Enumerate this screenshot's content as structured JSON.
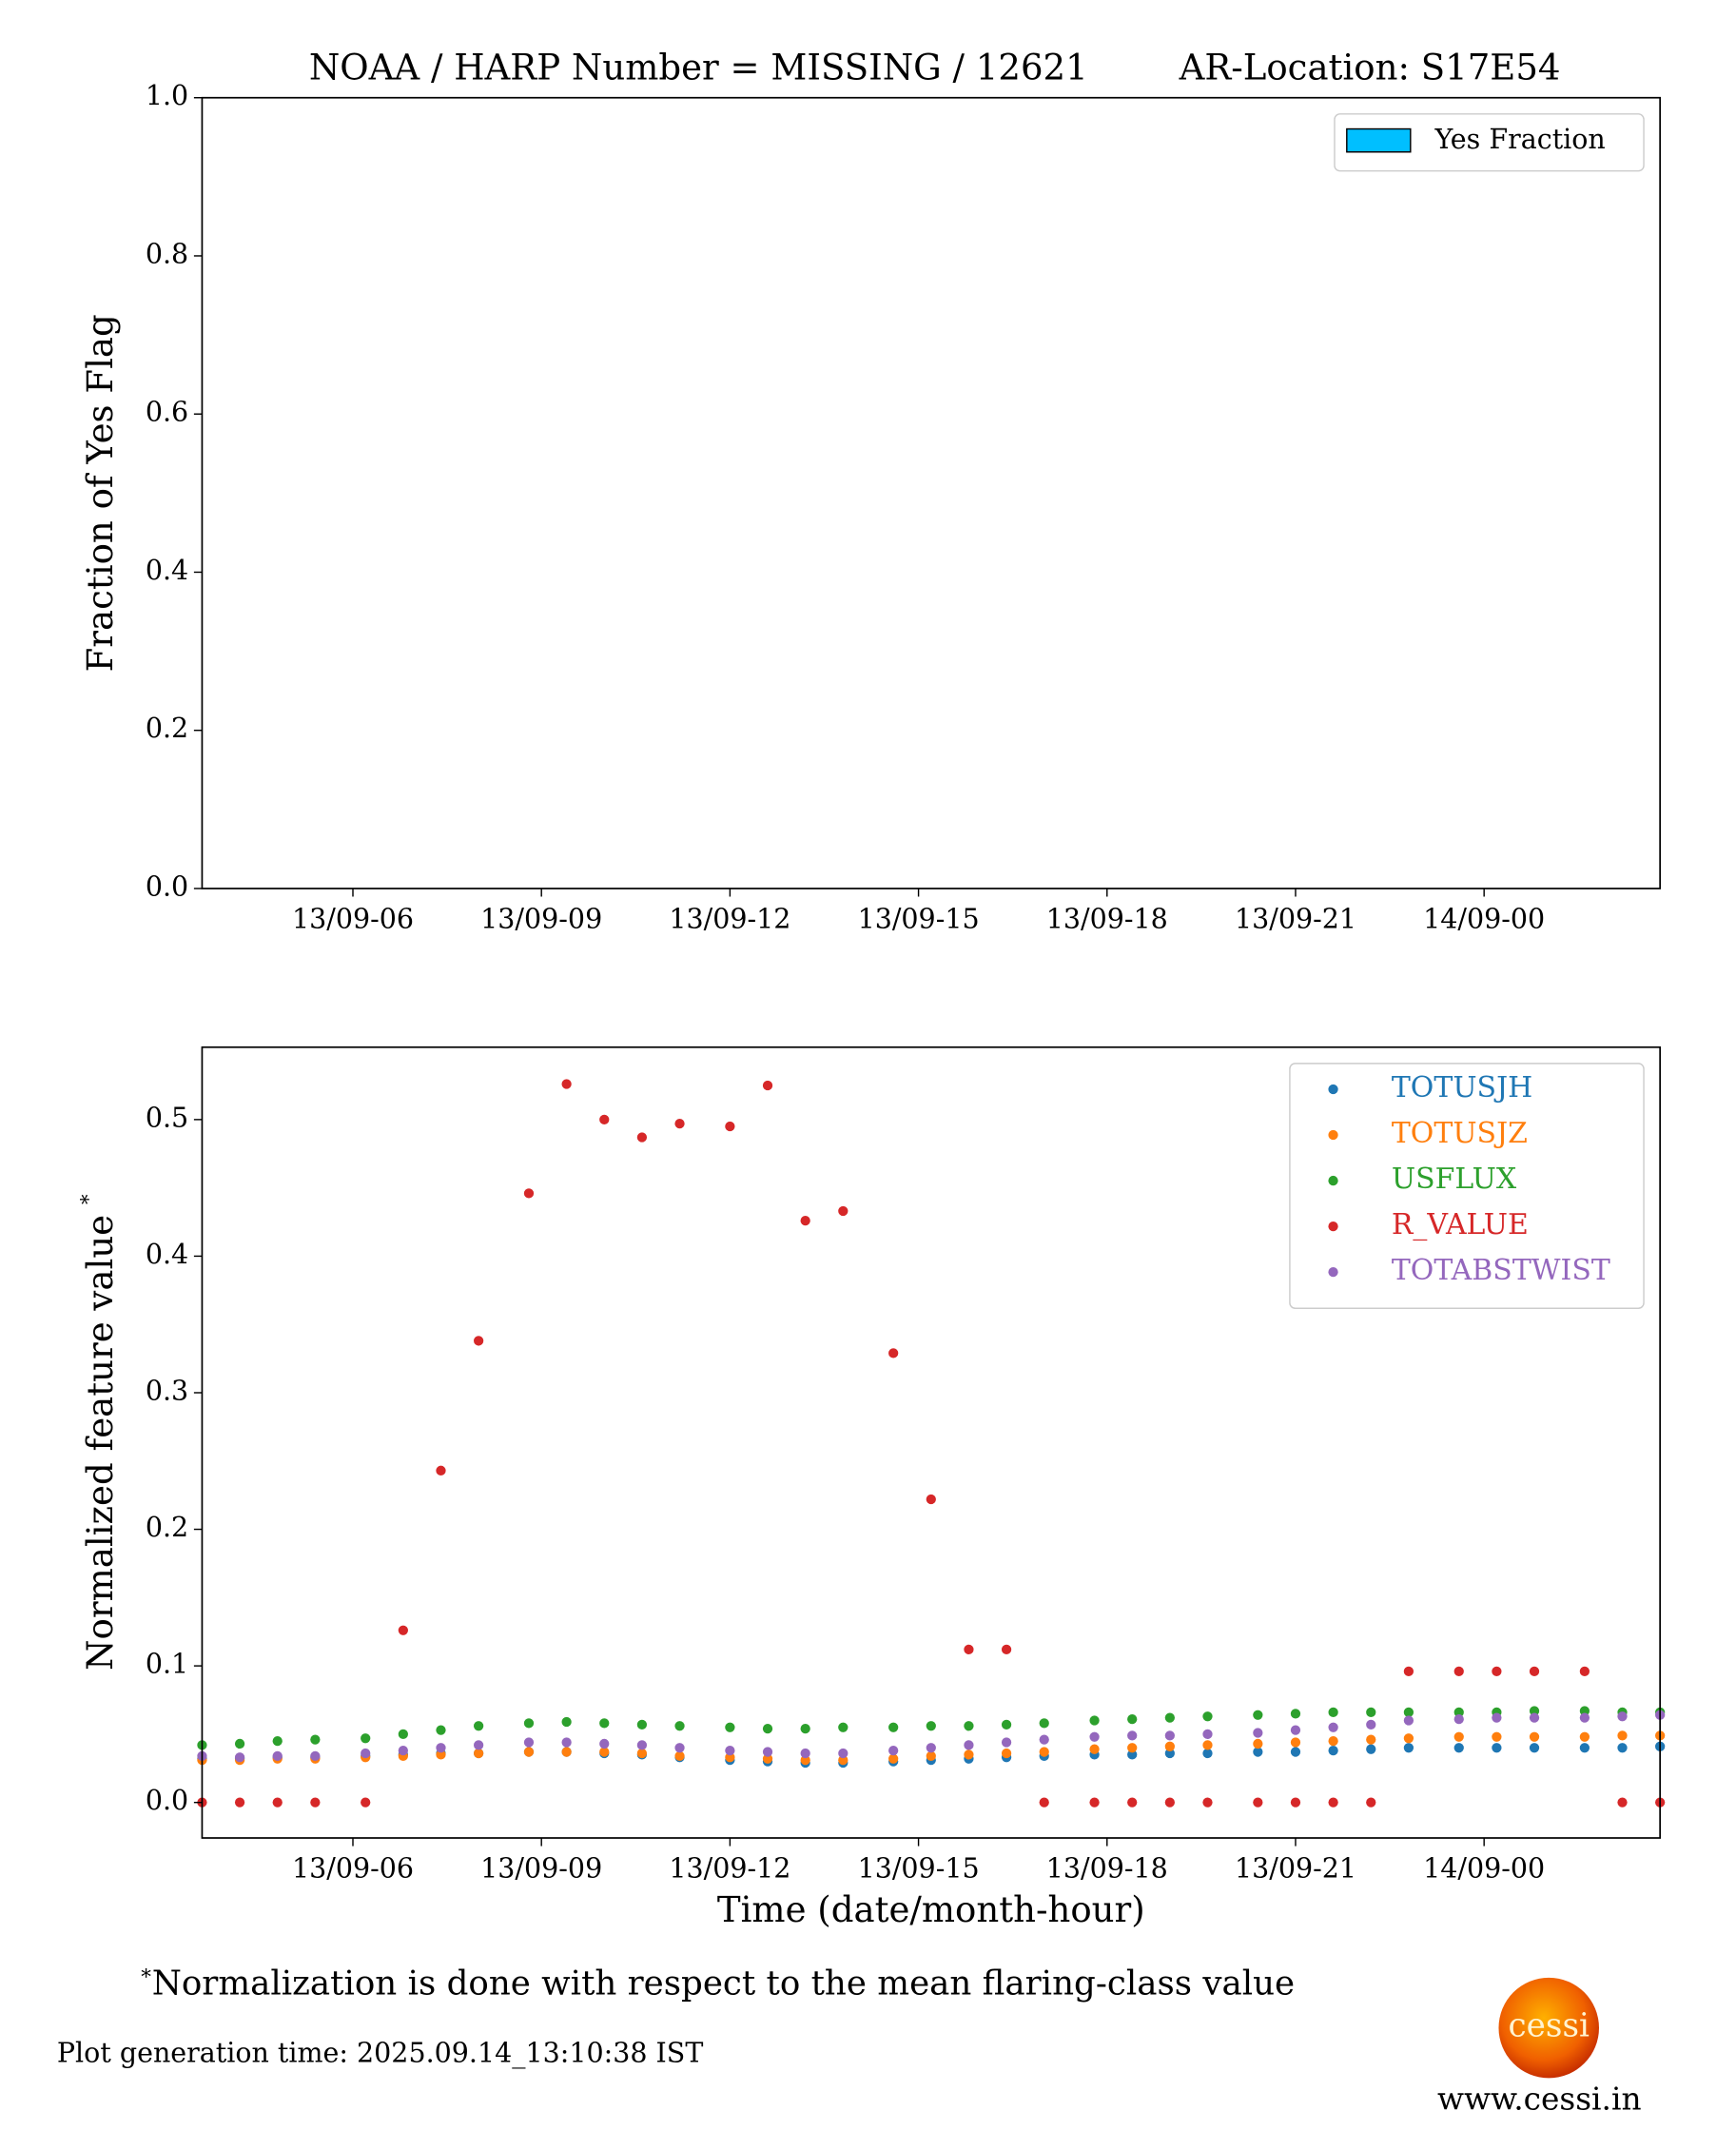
{
  "chart_data": [
    {
      "type": "bar",
      "title": "NOAA / HARP Number = MISSING / 12621",
      "title_right": "AR-Location: S17E54",
      "ylabel": "Fraction of Yes Flag",
      "series": [
        {
          "name": "Yes Fraction",
          "color": "#00bfff",
          "values": []
        }
      ],
      "legend": "upper right",
      "grid": false,
      "xlim": [
        3.6,
        26.8
      ],
      "xticks": [
        {
          "value": 6,
          "label": "13/09-06"
        },
        {
          "value": 9,
          "label": "13/09-09"
        },
        {
          "value": 12,
          "label": "13/09-12"
        },
        {
          "value": 15,
          "label": "13/09-15"
        },
        {
          "value": 18,
          "label": "13/09-18"
        },
        {
          "value": 21,
          "label": "13/09-21"
        },
        {
          "value": 24,
          "label": "14/09-00"
        }
      ],
      "ylim": [
        0,
        1
      ],
      "yticks": [
        {
          "value": 0,
          "label": "0.0"
        },
        {
          "value": 0.2,
          "label": "0.2"
        },
        {
          "value": 0.4,
          "label": "0.4"
        },
        {
          "value": 0.6,
          "label": "0.6"
        },
        {
          "value": 0.8,
          "label": "0.8"
        },
        {
          "value": 1,
          "label": "1.0"
        }
      ]
    },
    {
      "type": "scatter",
      "xlabel": "Time (date/month-hour)",
      "ylabel": "Normalized feature value",
      "ylabel_superscript": "*",
      "legend": "upper right",
      "grid": false,
      "x": [
        3.6,
        4.2,
        4.8,
        5.4,
        6.2,
        6.8,
        7.4,
        8.0,
        8.8,
        9.4,
        10.0,
        10.6,
        11.2,
        12.0,
        12.6,
        13.2,
        13.8,
        14.6,
        15.2,
        15.8,
        16.4,
        17.0,
        17.8,
        18.4,
        19.0,
        19.6,
        20.4,
        21.0,
        21.6,
        22.2,
        22.8,
        23.6,
        24.2,
        24.8,
        25.6,
        26.2,
        26.8
      ],
      "series": [
        {
          "name": "TOTUSJH",
          "color": "#1f77b4",
          "values": [
            0.032,
            0.032,
            0.033,
            0.033,
            0.034,
            0.035,
            0.036,
            0.036,
            0.037,
            0.037,
            0.036,
            0.035,
            0.033,
            0.031,
            0.03,
            0.029,
            0.029,
            0.03,
            0.031,
            0.032,
            0.033,
            0.034,
            0.035,
            0.035,
            0.036,
            0.036,
            0.037,
            0.037,
            0.038,
            0.039,
            0.04,
            0.04,
            0.04,
            0.04,
            0.04,
            0.04,
            0.041
          ]
        },
        {
          "name": "TOTUSJZ",
          "color": "#ff7f0e",
          "values": [
            0.031,
            0.031,
            0.032,
            0.032,
            0.033,
            0.034,
            0.035,
            0.036,
            0.037,
            0.037,
            0.037,
            0.036,
            0.034,
            0.033,
            0.032,
            0.031,
            0.031,
            0.032,
            0.034,
            0.035,
            0.036,
            0.037,
            0.039,
            0.04,
            0.041,
            0.042,
            0.043,
            0.044,
            0.045,
            0.046,
            0.047,
            0.048,
            0.048,
            0.048,
            0.048,
            0.049,
            0.049
          ]
        },
        {
          "name": "USFLUX",
          "color": "#2ca02c",
          "values": [
            0.042,
            0.043,
            0.045,
            0.046,
            0.047,
            0.05,
            0.053,
            0.056,
            0.058,
            0.059,
            0.058,
            0.057,
            0.056,
            0.055,
            0.054,
            0.054,
            0.055,
            0.055,
            0.056,
            0.056,
            0.057,
            0.058,
            0.06,
            0.061,
            0.062,
            0.063,
            0.064,
            0.065,
            0.066,
            0.066,
            0.066,
            0.066,
            0.066,
            0.067,
            0.067,
            0.066,
            0.066
          ]
        },
        {
          "name": "R_VALUE",
          "color": "#d62728",
          "values": [
            0,
            0,
            0,
            0,
            0,
            0.126,
            0.243,
            0.338,
            0.446,
            0.526,
            0.5,
            0.487,
            0.497,
            0.495,
            0.525,
            0.426,
            0.433,
            0.329,
            0.222,
            0.112,
            0.112,
            0,
            0,
            0,
            0,
            0,
            0,
            0,
            0,
            0,
            0.096,
            0.096,
            0.096,
            0.096,
            0.096,
            0,
            0
          ]
        },
        {
          "name": "TOTABSTWIST",
          "color": "#9467bd",
          "values": [
            0.034,
            0.033,
            0.034,
            0.034,
            0.036,
            0.038,
            0.04,
            0.042,
            0.044,
            0.044,
            0.043,
            0.042,
            0.04,
            0.038,
            0.037,
            0.036,
            0.036,
            0.038,
            0.04,
            0.042,
            0.044,
            0.046,
            0.048,
            0.049,
            0.049,
            0.05,
            0.051,
            0.053,
            0.055,
            0.057,
            0.06,
            0.061,
            0.062,
            0.062,
            0.062,
            0.063,
            0.064
          ]
        }
      ],
      "xlim": [
        3.6,
        26.8
      ],
      "xticks": [
        {
          "value": 6,
          "label": "13/09-06"
        },
        {
          "value": 9,
          "label": "13/09-09"
        },
        {
          "value": 12,
          "label": "13/09-12"
        },
        {
          "value": 15,
          "label": "13/09-15"
        },
        {
          "value": 18,
          "label": "13/09-18"
        },
        {
          "value": 21,
          "label": "13/09-21"
        },
        {
          "value": 24,
          "label": "14/09-00"
        }
      ],
      "ylim": [
        -0.026,
        0.553
      ],
      "yticks": [
        {
          "value": 0,
          "label": "0.0"
        },
        0.1,
        0.2,
        0.3,
        0.4,
        0.5
      ]
    }
  ],
  "footnote": {
    "mark": "*",
    "text": "Normalization is done with respect to the mean flaring-class value"
  },
  "generation_time": "Plot generation time: 2025.09.14_13:10:38 IST",
  "logo": {
    "text": "cessi",
    "url": "www.cessi.in"
  }
}
